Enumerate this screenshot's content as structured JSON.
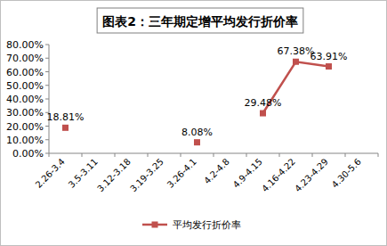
{
  "chart_data": {
    "type": "line",
    "title": "图表2：三年期定增平均发行折价率",
    "categories": [
      "2.26-3.4",
      "3.5-3.11",
      "3.12-3.18",
      "3.19-3.25",
      "3.26-4.1",
      "4.2-4.8",
      "4.9-4.15",
      "4.16-4.22",
      "4.23-4.29",
      "4.30-5.6"
    ],
    "series": [
      {
        "name": "平均发行折价率",
        "color": "#c0504d",
        "marker": "square",
        "values": [
          18.81,
          null,
          null,
          null,
          8.08,
          null,
          29.48,
          67.38,
          63.91,
          null
        ],
        "value_labels": [
          "18.81%",
          null,
          null,
          null,
          "8.08%",
          null,
          "29.48%",
          "67.38%",
          "63.91%",
          null
        ]
      }
    ],
    "ylim": [
      0,
      80
    ],
    "yticks": [
      {
        "value": 0,
        "label": "0.00%"
      },
      {
        "value": 10,
        "label": "10.00%"
      },
      {
        "value": 20,
        "label": "20.00%"
      },
      {
        "value": 30,
        "label": "30.00%"
      },
      {
        "value": 40,
        "label": "40.00%"
      },
      {
        "value": 50,
        "label": "50.00%"
      },
      {
        "value": 60,
        "label": "60.00%"
      },
      {
        "value": 70,
        "label": "70.00%"
      },
      {
        "value": 80,
        "label": "80.00%"
      }
    ],
    "grid": false,
    "data_labels": true,
    "legend": "bottom"
  }
}
